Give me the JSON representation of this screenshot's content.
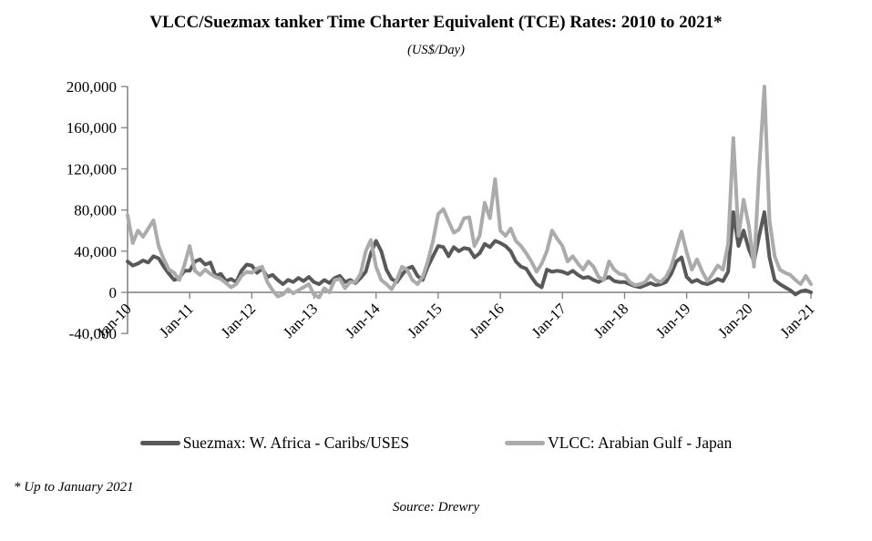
{
  "page": {
    "title": "VLCC/Suezmax tanker Time Charter Equivalent (TCE) Rates: 2010 to 2021*",
    "subtitle": "(US$/Day)",
    "footnote": "* Up to January 2021",
    "source": "Source: Drewry"
  },
  "chart_data": {
    "type": "line",
    "title": "VLCC/Suezmax tanker Time Charter Equivalent (TCE) Rates: 2010 to 2021*",
    "subtitle": "(US$/Day)",
    "ylabel": "US$/Day",
    "xlabel": "",
    "ylim": [
      -40000,
      200000
    ],
    "y_ticks": [
      200000,
      160000,
      120000,
      80000,
      40000,
      0,
      -40000
    ],
    "x_tick_labels": [
      "Jan-10",
      "Jan-11",
      "Jan-12",
      "Jan-13",
      "Jan-14",
      "Jan-15",
      "Jan-16",
      "Jan-17",
      "Jan-18",
      "Jan-19",
      "Jan-20",
      "Jan-21"
    ],
    "x_frequency": "monthly",
    "points_per_series": 133,
    "grid": false,
    "legend_position": "bottom",
    "axis_color": "#7f7f7f",
    "series": [
      {
        "name": "Suezmax: W. Africa - Caribs/USES",
        "color": "#595959",
        "values": [
          30000,
          26000,
          28000,
          31000,
          29000,
          35000,
          33000,
          25000,
          18000,
          12000,
          14000,
          21000,
          21000,
          30000,
          32000,
          27000,
          29000,
          16000,
          18000,
          11000,
          13000,
          10000,
          21000,
          27000,
          26000,
          19000,
          23000,
          15000,
          17000,
          12000,
          8000,
          12000,
          10000,
          14000,
          11000,
          15000,
          10000,
          8000,
          12000,
          9000,
          14000,
          16000,
          10000,
          12000,
          9000,
          14000,
          20000,
          38000,
          50000,
          40000,
          22000,
          13000,
          10000,
          17000,
          23000,
          25000,
          16000,
          12000,
          25000,
          35000,
          45000,
          44000,
          35000,
          44000,
          40000,
          43000,
          42000,
          34000,
          38000,
          47000,
          44000,
          50000,
          48000,
          45000,
          40000,
          30000,
          25000,
          23000,
          15000,
          8000,
          5000,
          22000,
          20000,
          21000,
          20000,
          18000,
          21000,
          17000,
          14000,
          15000,
          12000,
          10000,
          13000,
          15000,
          11000,
          10000,
          10000,
          8000,
          6000,
          5000,
          7000,
          9000,
          7000,
          8000,
          10000,
          18000,
          30000,
          34000,
          15000,
          10000,
          12000,
          9000,
          8000,
          10000,
          13000,
          11000,
          20000,
          78000,
          45000,
          60000,
          42000,
          30000,
          55000,
          78000,
          34000,
          12000,
          8000,
          5000,
          2000,
          -2000,
          1000,
          2000,
          0
        ]
      },
      {
        "name": "VLCC: Arabian Gulf - Japan",
        "color": "#ababab",
        "values": [
          75000,
          48000,
          60000,
          54000,
          62000,
          70000,
          45000,
          32000,
          22000,
          19000,
          12000,
          27000,
          45000,
          21000,
          17000,
          22000,
          18000,
          15000,
          13000,
          9000,
          5000,
          8000,
          16000,
          20000,
          19000,
          23000,
          25000,
          10000,
          2000,
          -4000,
          -2000,
          3000,
          -1000,
          2000,
          5000,
          8000,
          -2000,
          -5000,
          4000,
          0,
          12000,
          13000,
          4000,
          10000,
          10000,
          18000,
          40000,
          51000,
          25000,
          12000,
          8000,
          3000,
          12000,
          25000,
          22000,
          12000,
          8000,
          15000,
          30000,
          50000,
          76000,
          81000,
          69000,
          58000,
          61000,
          72000,
          73000,
          45000,
          55000,
          87000,
          72000,
          110000,
          60000,
          55000,
          62000,
          50000,
          45000,
          38000,
          30000,
          20000,
          28000,
          40000,
          60000,
          52000,
          45000,
          30000,
          35000,
          28000,
          22000,
          30000,
          25000,
          15000,
          12000,
          30000,
          22000,
          18000,
          17000,
          10000,
          7000,
          8000,
          10000,
          17000,
          12000,
          10000,
          15000,
          25000,
          42000,
          59000,
          39000,
          22000,
          32000,
          20000,
          11000,
          18000,
          26000,
          22000,
          47000,
          150000,
          55000,
          90000,
          65000,
          25000,
          120000,
          200000,
          70000,
          35000,
          22000,
          19000,
          17000,
          12000,
          8000,
          16000,
          8000
        ]
      }
    ]
  }
}
